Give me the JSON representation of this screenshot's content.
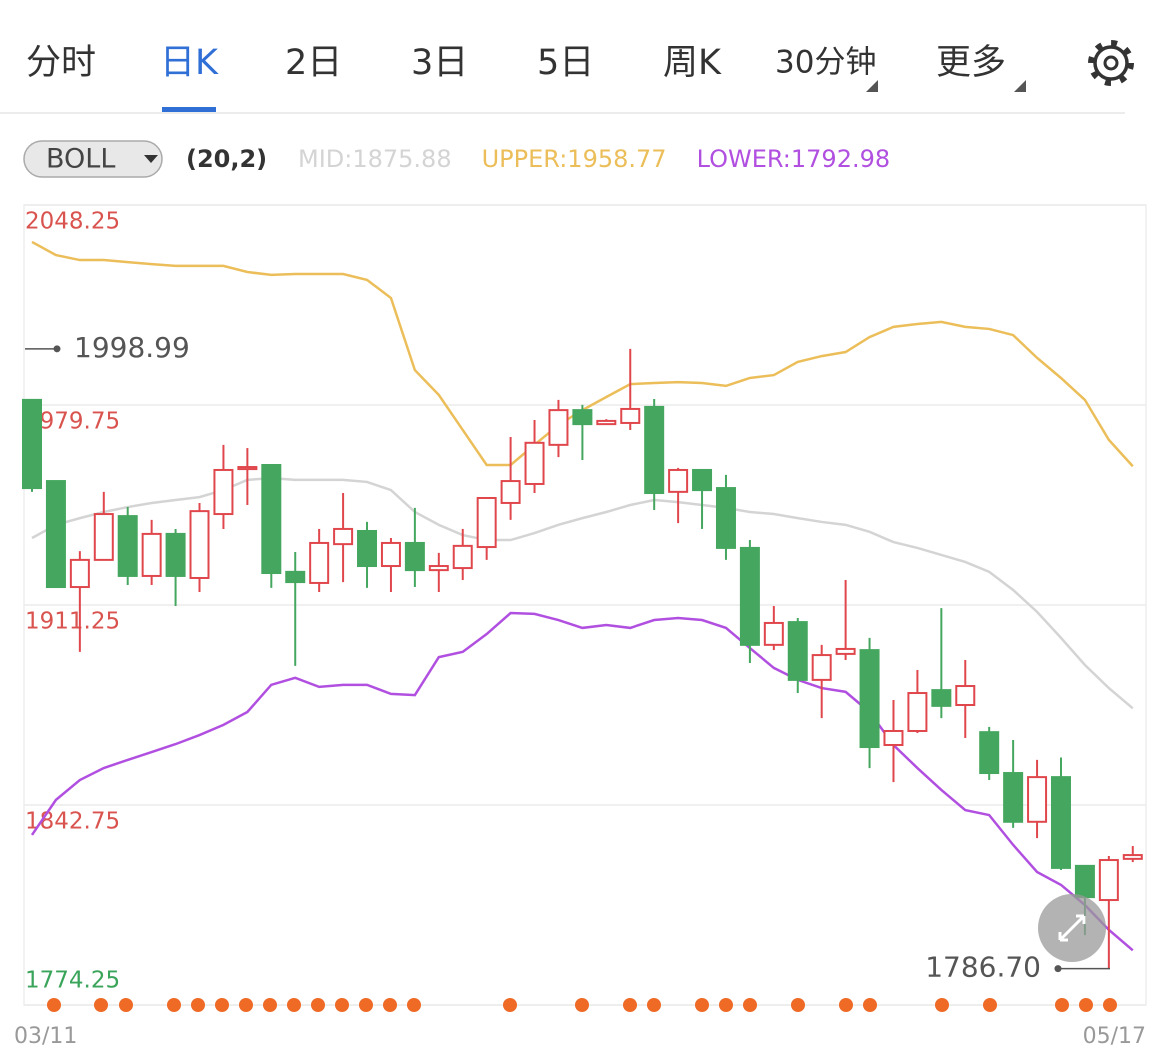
{
  "tabs": [
    "分时",
    "日K",
    "2日",
    "3日",
    "5日",
    "周K",
    "30分钟",
    "更多"
  ],
  "active_tab": 1,
  "chart_data": {
    "type": "candlestick",
    "indicator": "BOLL",
    "indicator_params": "(20,2)",
    "categories": [
      "03/11",
      null,
      null,
      null,
      null,
      null,
      null,
      null,
      null,
      null,
      null,
      null,
      null,
      null,
      null,
      null,
      null,
      null,
      null,
      null,
      null,
      null,
      null,
      null,
      null,
      null,
      null,
      null,
      null,
      null,
      null,
      null,
      null,
      null,
      null,
      null,
      null,
      null,
      null,
      null,
      null,
      null,
      null,
      null,
      null,
      null,
      "05/17"
    ],
    "open": [
      1981.5,
      1953.7,
      1917.4,
      1926.7,
      1941.7,
      1921.2,
      1935.6,
      1920.5,
      1942.4,
      1957.8,
      1959.2,
      1922.6,
      1918.8,
      1932.1,
      1936.6,
      1924.6,
      1932.5,
      1923.2,
      1923.9,
      1931.1,
      1946.2,
      1952.7,
      1966.1,
      1978.0,
      1973.2,
      1973.6,
      1979.1,
      1950.0,
      1957.5,
      1951.3,
      1930.8,
      1897.6,
      1905.4,
      1885.6,
      1894.5,
      1895.8,
      1863.3,
      1868.1,
      1882.1,
      1877.0,
      1867.7,
      1853.7,
      1837.0,
      1852.3,
      1821.9,
      1810.2,
      1824.3
    ],
    "high": [
      1981.5,
      1953.7,
      1929.7,
      1950.0,
      1944.8,
      1940.4,
      1937.3,
      1946.2,
      1966.1,
      1965.0,
      1959.2,
      1929.4,
      1937.3,
      1949.6,
      1939.7,
      1934.2,
      1944.5,
      1929.1,
      1937.3,
      1947.9,
      1968.8,
      1974.6,
      1981.5,
      1979.8,
      1974.9,
      1998.99,
      1981.8,
      1958.2,
      1957.5,
      1955.8,
      1933.5,
      1910.9,
      1906.8,
      1897.6,
      1919.8,
      1900.0,
      1878.7,
      1889.0,
      1910.2,
      1892.4,
      1869.5,
      1865.0,
      1858.2,
      1859.0,
      1821.9,
      1825.3,
      1828.7
    ],
    "low": [
      1950.0,
      1917.4,
      1895.2,
      1926.7,
      1918.1,
      1918.1,
      1910.9,
      1915.7,
      1937.3,
      1945.5,
      1917.1,
      1890.4,
      1915.7,
      1919.1,
      1917.1,
      1915.7,
      1917.4,
      1915.7,
      1919.8,
      1926.7,
      1940.4,
      1949.6,
      1961.9,
      1960.9,
      1972.9,
      1971.2,
      1943.8,
      1939.3,
      1937.3,
      1926.7,
      1891.4,
      1895.8,
      1881.1,
      1872.5,
      1892.4,
      1855.4,
      1850.6,
      1867.4,
      1872.5,
      1865.7,
      1851.3,
      1834.9,
      1831.4,
      1820.5,
      1798.2,
      1786.7,
      1823.2
    ],
    "close": [
      1951.3,
      1917.4,
      1926.7,
      1942.4,
      1921.2,
      1935.6,
      1921.2,
      1943.4,
      1957.5,
      1958.5,
      1922.2,
      1919.1,
      1932.5,
      1937.3,
      1924.6,
      1932.5,
      1923.2,
      1924.6,
      1931.5,
      1947.9,
      1953.7,
      1966.8,
      1978.0,
      1973.2,
      1974.3,
      1978.4,
      1949.6,
      1957.5,
      1950.6,
      1930.8,
      1897.6,
      1905.1,
      1885.6,
      1894.1,
      1896.2,
      1862.6,
      1868.1,
      1881.1,
      1876.7,
      1883.5,
      1853.7,
      1837.0,
      1852.3,
      1821.2,
      1811.2,
      1823.9,
      1825.6
    ],
    "up_color": "#e0474c",
    "down_color": "#45a75f",
    "overlays": [
      {
        "label": "MID:1875.88",
        "color": "#d4d4d4",
        "values": [
          1934.2,
          1938.7,
          1941.0,
          1943.1,
          1944.8,
          1946.2,
          1947.2,
          1948.2,
          1950.6,
          1954.1,
          1954.7,
          1954.1,
          1954.1,
          1954.1,
          1953.4,
          1950.6,
          1943.1,
          1938.7,
          1935.2,
          1933.5,
          1933.5,
          1935.9,
          1938.7,
          1941.0,
          1943.1,
          1945.5,
          1947.2,
          1946.5,
          1945.5,
          1944.5,
          1943.1,
          1942.4,
          1941.0,
          1939.7,
          1938.7,
          1936.3,
          1932.8,
          1930.8,
          1928.4,
          1926.0,
          1922.6,
          1916.4,
          1908.9,
          1900.0,
          1890.7,
          1882.8,
          1875.88
        ]
      },
      {
        "label": "UPPER:1958.77",
        "color": "#ecbe5a",
        "values": [
          2035.6,
          2031.1,
          2029.4,
          2029.4,
          2028.7,
          2028.0,
          2027.4,
          2027.4,
          2027.4,
          2025.3,
          2024.3,
          2024.6,
          2024.6,
          2024.6,
          2022.6,
          2016.4,
          1991.7,
          1983.2,
          1971.2,
          1959.2,
          1959.2,
          1966.1,
          1972.9,
          1978.0,
          1982.5,
          1986.9,
          1987.3,
          1987.6,
          1987.3,
          1986.3,
          1989.0,
          1990.0,
          1994.5,
          1996.5,
          1997.9,
          2003.0,
          2006.5,
          2007.5,
          2008.2,
          2006.5,
          2005.8,
          2003.7,
          1995.9,
          1989.0,
          1981.5,
          1967.8,
          1958.77
        ]
      },
      {
        "label": "LOWER:1792.98",
        "color": "#b150e0",
        "values": [
          1832.5,
          1844.5,
          1851.3,
          1855.4,
          1858.2,
          1860.9,
          1863.6,
          1866.7,
          1870.2,
          1874.6,
          1883.9,
          1886.3,
          1883.2,
          1883.9,
          1883.9,
          1880.8,
          1880.4,
          1893.4,
          1895.2,
          1901.3,
          1908.5,
          1908.2,
          1906.1,
          1903.4,
          1904.4,
          1903.4,
          1906.1,
          1906.8,
          1906.1,
          1903.4,
          1896.5,
          1889.7,
          1885.6,
          1882.8,
          1881.5,
          1874.6,
          1863.3,
          1855.4,
          1847.9,
          1841.0,
          1839.3,
          1829.1,
          1819.8,
          1815.4,
          1808.5,
          1800.0,
          1792.98
        ]
      }
    ],
    "high_label": "1998.99",
    "low_label": "1786.70",
    "ylim": [
      1774.25,
      2048.25
    ],
    "yticks": [
      2048.25,
      1979.75,
      1911.25,
      1842.75,
      1774.25
    ],
    "ytick_colors": [
      "#d9534f",
      "#d9534f",
      "#d9534f",
      "#d9534f",
      "#3aa45a"
    ],
    "grid": true
  }
}
